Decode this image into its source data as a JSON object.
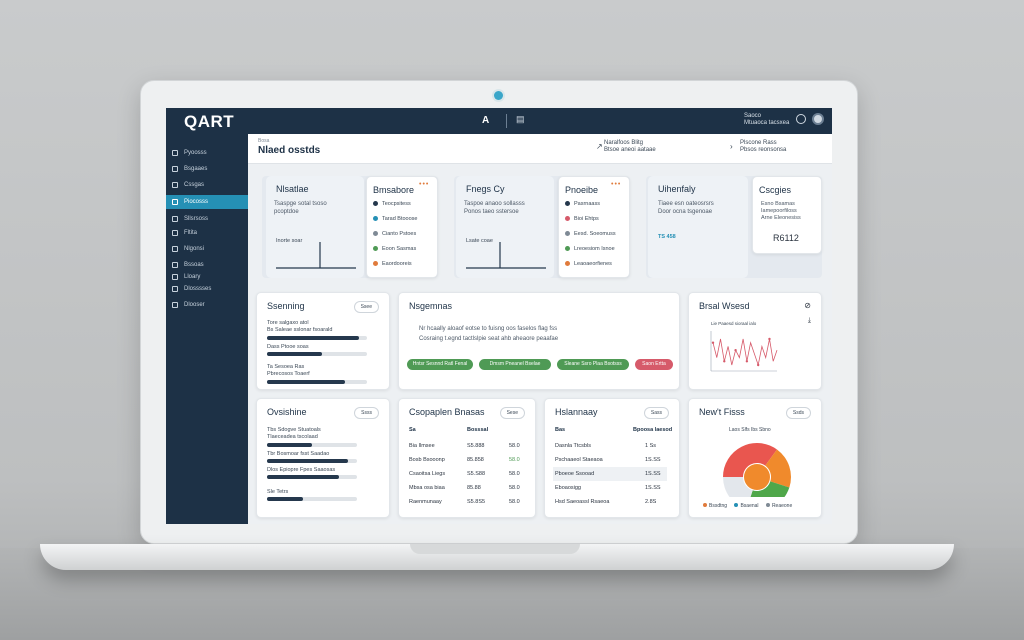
{
  "app": {
    "logo": "QART",
    "top_a": "A",
    "user_lines": [
      "Saoco",
      "Mtuaoca tacsxea"
    ]
  },
  "sidebar": {
    "items": [
      {
        "label": "Pyoosss"
      },
      {
        "label": "Bsgaaes"
      },
      {
        "label": "Cssgas"
      },
      {
        "label": "Piocosss"
      },
      {
        "label": "Sllsrsoss"
      },
      {
        "label": "Fltita"
      },
      {
        "label": "Nlgonsi"
      },
      {
        "label": "Bssoas"
      },
      {
        "label": "Lloary"
      },
      {
        "label": "Dlosssses"
      },
      {
        "label": "Dlooser"
      }
    ]
  },
  "header": {
    "crumb": "Bosa",
    "title": "Nlaed osstds",
    "action1": [
      "Naralfoos Blitg",
      "Btsoe aneoi aataae"
    ],
    "action2": [
      "Plscone Rass",
      "Pbsos reonsonsa"
    ]
  },
  "top_cards": [
    {
      "title": "Nlsatlae",
      "body": [
        "Tsaspge sotal tsoso",
        "pcoptdoe"
      ],
      "axis": "Inorte soar"
    },
    {
      "title": "Bmsabore",
      "items": [
        "Teocpsitess",
        "Tarad Btooose",
        "Cianto Pstoes",
        "Eoon Sasmas",
        "Eaordooreis"
      ]
    },
    {
      "title": "Fnegs Cy",
      "body": [
        "Taspoe anaoo sollasss",
        "Ponos taeo sstersoe"
      ],
      "axis": "Lsate coae"
    },
    {
      "title": "Pnoeibe",
      "items": [
        "Pasrnaass",
        "Bioi Ehtps",
        "Eesd. Soeomuss",
        "Lreoesiom Isnoe",
        "Leaoaeorfienes"
      ]
    },
    {
      "title": "Uihenfaly",
      "body": [
        "Tiaee esn oateosrsrs",
        "Door ocna tsgenoae"
      ],
      "tag": "TS 458"
    },
    {
      "title": "Cscgies",
      "body": [
        "Esno Bsamas",
        "Iamepoorfiloss",
        "Arne Eleonesiss"
      ],
      "value": "R6112"
    }
  ],
  "mid": {
    "scheduling": {
      "title": "Ssenning",
      "pill": "Ssee",
      "rows": [
        {
          "label": "Tore salgaxo atol",
          "sub": "Bs Saleae sslonar fsoarald",
          "fill": 0.92
        },
        {
          "label": "Dass Ptooe soas",
          "sub": "",
          "fill": 0.55
        },
        {
          "label": "Ta Sesoea Ras",
          "sub": "Pbrecosos Toaerf",
          "fill": 0.78
        }
      ]
    },
    "suggestions": {
      "title": "Nsgemnas",
      "line1": "Nr hcaally aloaof eotse to fuisng oos faselos flag fss",
      "line2": "Cosraing t.egnd tactlslpie seat ahb aheaore peaafae",
      "buttons": [
        {
          "label": "Hntsr Sesnnd Ratl Fenal",
          "color": "#4f9a55"
        },
        {
          "label": "Dmsm Pneanel Bselae",
          "color": "#4f9a55"
        },
        {
          "label": "Sleane Ssro Plaa Bsotsss",
          "color": "#4f9a55"
        },
        {
          "label": "Saon Ertta",
          "color": "#d65a6a"
        }
      ]
    },
    "trend": {
      "title": "Brsal Wsesd",
      "legend": "Lie Paaesd sioraal ialo"
    }
  },
  "bottom": {
    "overview": {
      "title": "Ovsishine",
      "pill": "Ssss",
      "rows": [
        {
          "label": "Tbs Sdogve Stuatoals",
          "sub": "Tlaeceadea tscolaad",
          "fill": 0.5
        },
        {
          "label": "Tbr Bosmoar fsst Saadao",
          "sub": "",
          "fill": 0.9
        },
        {
          "label": "Dlos Epiopre Fpes Saaosas",
          "sub": "",
          "fill": 0.8
        },
        {
          "label": "Sle Tetrs",
          "sub": "",
          "fill": 0.4
        }
      ]
    },
    "company": {
      "title": "Csopaplen Bnasas",
      "pill": "Sese",
      "headers": [
        "Sa",
        "Bosssal",
        ""
      ],
      "rows": [
        [
          "Bia Ilmsee",
          "S5.888",
          "58.0"
        ],
        [
          "Bosb Bsooonp",
          "85.858",
          "58.0"
        ],
        [
          "Csaoitsa Liegs",
          "S5.S88",
          "58.0"
        ],
        [
          "Mbsa osa biaa",
          "85.88",
          "58.0"
        ],
        [
          "Raenmunaay",
          "S5.8S5",
          "58.0"
        ]
      ]
    },
    "history": {
      "title": "Hslannaay",
      "pill": "Sass",
      "headers": [
        "Bas",
        "Bpoosa laesod"
      ],
      "rows": [
        [
          "Dasnla Ttcsbls",
          "1 Ss"
        ],
        [
          "Pschaaeol Staeaoa",
          "1S.SS"
        ],
        [
          "Pboeoe Ssooad",
          "1S.SS"
        ],
        [
          "Eboaosigg",
          "1S.SS"
        ],
        [
          "Hsd Saeoassl Rsaeoa",
          "2.8S"
        ]
      ]
    },
    "new_flows": {
      "title": "New't Fisss",
      "pill": "Ssds",
      "chart_label": "Laos Slfs Ibs Sbno",
      "legend": [
        "Bssdtng",
        "Bsaenal",
        "Reaeone"
      ]
    }
  },
  "chart_data": [
    {
      "type": "line",
      "title": "Brsal Wsesd",
      "series": [
        {
          "values": [
            14,
            10,
            15,
            9,
            13,
            8,
            12,
            10,
            15,
            9,
            14,
            11,
            8,
            13,
            10,
            15,
            9,
            12
          ]
        }
      ]
    },
    {
      "type": "pie",
      "title": "New't Fisss",
      "values": [
        35,
        20,
        25,
        20
      ],
      "colors": [
        "#e9564f",
        "#f08a2c",
        "#4fa74a",
        "#e3e7ec"
      ]
    }
  ],
  "colors": {
    "sidebar": "#1d3146",
    "accent": "#2590b5",
    "green": "#4f9a55",
    "red": "#d65a6a"
  }
}
